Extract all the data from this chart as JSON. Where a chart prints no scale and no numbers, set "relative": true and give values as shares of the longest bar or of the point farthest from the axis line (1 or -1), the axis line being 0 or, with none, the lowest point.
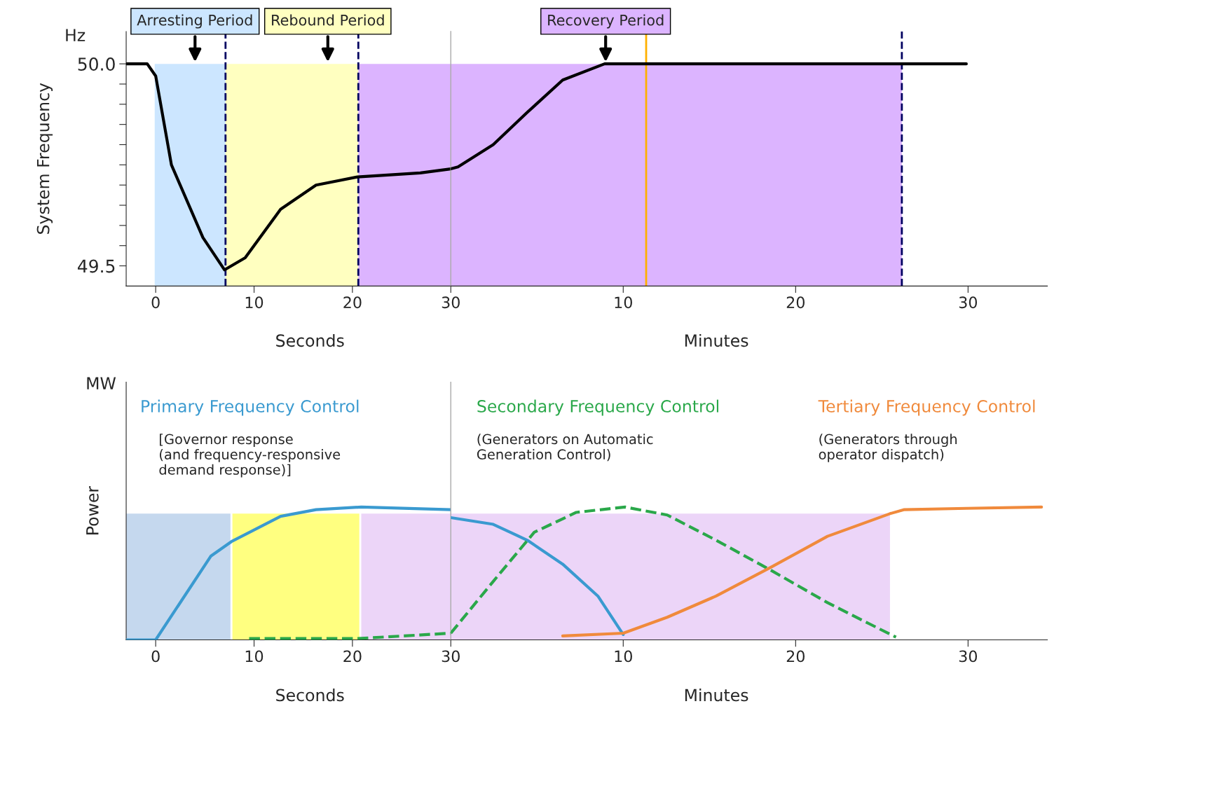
{
  "chart_data": [
    {
      "type": "line",
      "ylabel": "System Frequency",
      "x": [
        -3.0,
        -0.86,
        0,
        1.6,
        4.8,
        7.0,
        9.1,
        12.7,
        16.3,
        20.5,
        26.9,
        30
      ],
      "series": [
        {
          "color": "#000000",
          "values": [
            50.0,
            50.0,
            49.97,
            49.75,
            49.57,
            49.49,
            49.52,
            49.64,
            49.7,
            49.72,
            49.73,
            49.74
          ]
        }
      ],
      "xlim": [
        -3,
        30
      ],
      "ylim": [
        49.45,
        50.08
      ],
      "xticks": [
        0,
        10,
        20,
        30
      ],
      "yticks": [
        {
          "value": 50.0,
          "label": "50.0"
        },
        {
          "value": 49.95,
          "label": null
        },
        {
          "value": 49.9,
          "label": null
        },
        {
          "value": 49.85,
          "label": null
        },
        {
          "value": 49.8,
          "label": null
        },
        {
          "value": 49.75,
          "label": null
        },
        {
          "value": 49.7,
          "label": null
        },
        {
          "value": 49.65,
          "label": null
        },
        {
          "value": 49.6,
          "label": null
        },
        {
          "value": 49.55,
          "label": null
        },
        {
          "value": 49.5,
          "label": "49.5"
        }
      ],
      "bands": [
        {
          "axis": "x",
          "from": -0.1,
          "to": 7.1,
          "color": "#cce6ff"
        },
        {
          "axis": "x",
          "from": 7.1,
          "to": 20.6,
          "color": "#ffffc0"
        },
        {
          "axis": "x",
          "from": 20.6,
          "to": 30,
          "color": "#dcb4ff"
        }
      ],
      "ref_lines": [
        {
          "axis": "x",
          "value": 7.1,
          "color": "#000060",
          "line_style": "dashed"
        },
        {
          "axis": "x",
          "value": 20.6,
          "color": "#000060",
          "line_style": "dashed"
        }
      ],
      "annotations": [
        {
          "text": "Arresting Period",
          "x": 4.0,
          "y": 50.0
        },
        {
          "text": "Rebound Period",
          "x": 17.5,
          "y": 50.0
        },
        "Hz",
        "Seconds"
      ],
      "grid": false,
      "legend": false
    },
    {
      "type": "line",
      "tick_labels": "x",
      "x": [
        0,
        0.42,
        2.46,
        4.44,
        6.49,
        8.92,
        29.9
      ],
      "series": [
        {
          "color": "#000000",
          "values": [
            49.74,
            49.745,
            49.8,
            49.88,
            49.96,
            50.0,
            50.0
          ]
        }
      ],
      "xlim": [
        0,
        34.6
      ],
      "ylim": [
        49.45,
        50.08
      ],
      "xticks": [
        10,
        20,
        30
      ],
      "bands": [
        {
          "axis": "x",
          "from": 0,
          "to": 26.16,
          "color": "#dcb4ff"
        }
      ],
      "ref_lines": [
        {
          "axis": "x",
          "value": 11.33,
          "color": "#ffb000"
        },
        {
          "axis": "x",
          "value": 26.16,
          "color": "#000060",
          "line_style": "dashed"
        }
      ],
      "annotations": [
        {
          "text": "Recovery Period",
          "x": 8.98,
          "y": 50.0
        },
        "Minutes"
      ],
      "grid": false,
      "legend": false
    },
    {
      "type": "line",
      "ylabel": "Power",
      "relative": true,
      "series": [
        {
          "name": "Primary Frequency Control",
          "color": "#3a9ad0",
          "x": [
            -3,
            0,
            5.6,
            7.7,
            12.7,
            16.3,
            20.9,
            30
          ],
          "values": [
            0,
            0,
            0.63,
            0.74,
            0.93,
            0.98,
            1.0,
            0.98
          ]
        },
        {
          "color": "#2aa84a",
          "line_style": "dashed",
          "x": [
            9.5,
            20.5,
            30
          ],
          "values": [
            0.01,
            0.01,
            0.05
          ]
        }
      ],
      "xlim": [
        -3,
        30
      ],
      "xticks": [
        0,
        10,
        20,
        30
      ],
      "bands": [
        {
          "axis": "x",
          "from": -3,
          "to": 7.6,
          "color": "#c5d8ee"
        },
        {
          "axis": "x",
          "from": 7.8,
          "to": 20.7,
          "color": "#ffff80"
        },
        {
          "axis": "x",
          "from": 20.9,
          "to": 30,
          "color": "#ecd5f8"
        }
      ],
      "annotations": [
        "MW",
        "Seconds",
        "[Governor response\n(and frequency-responsive\ndemand response)]"
      ],
      "grid": false,
      "legend": false
    },
    {
      "type": "line",
      "relative": true,
      "tick_labels": "x",
      "series": [
        {
          "color": "#3a9ad0",
          "x": [
            0,
            2.46,
            4.44,
            6.49,
            8.53,
            10.0
          ],
          "values": [
            0.92,
            0.87,
            0.75,
            0.57,
            0.33,
            0.04
          ]
        },
        {
          "name": "Secondary Frequency Control",
          "color": "#2aa84a",
          "line_style": "dashed",
          "x": [
            0,
            2.46,
            4.84,
            7.28,
            10.11,
            12.55,
            15.39,
            18.62,
            21.85,
            24.29,
            25.82
          ],
          "values": [
            0.05,
            0.44,
            0.81,
            0.96,
            1.0,
            0.94,
            0.75,
            0.52,
            0.28,
            0.12,
            0.02
          ]
        },
        {
          "name": "Tertiary Frequency Control",
          "color": "#f08a3c",
          "x": [
            6.49,
            10.0,
            12.55,
            15.39,
            18.62,
            21.85,
            25.47,
            26.27,
            29.9,
            34.26
          ],
          "values": [
            0.03,
            0.05,
            0.17,
            0.33,
            0.55,
            0.78,
            0.95,
            0.98,
            0.99,
            1.0
          ]
        }
      ],
      "xlim": [
        0,
        34.6
      ],
      "xticks": [
        10,
        20,
        30
      ],
      "bands": [
        {
          "axis": "x",
          "from": 0,
          "to": 25.47,
          "color": "#ecd5f8"
        }
      ],
      "annotations": [
        "Minutes",
        "(Generators on Automatic\nGeneration Control)",
        "(Generators through\noperator dispatch)"
      ],
      "grid": false,
      "legend": false
    }
  ]
}
